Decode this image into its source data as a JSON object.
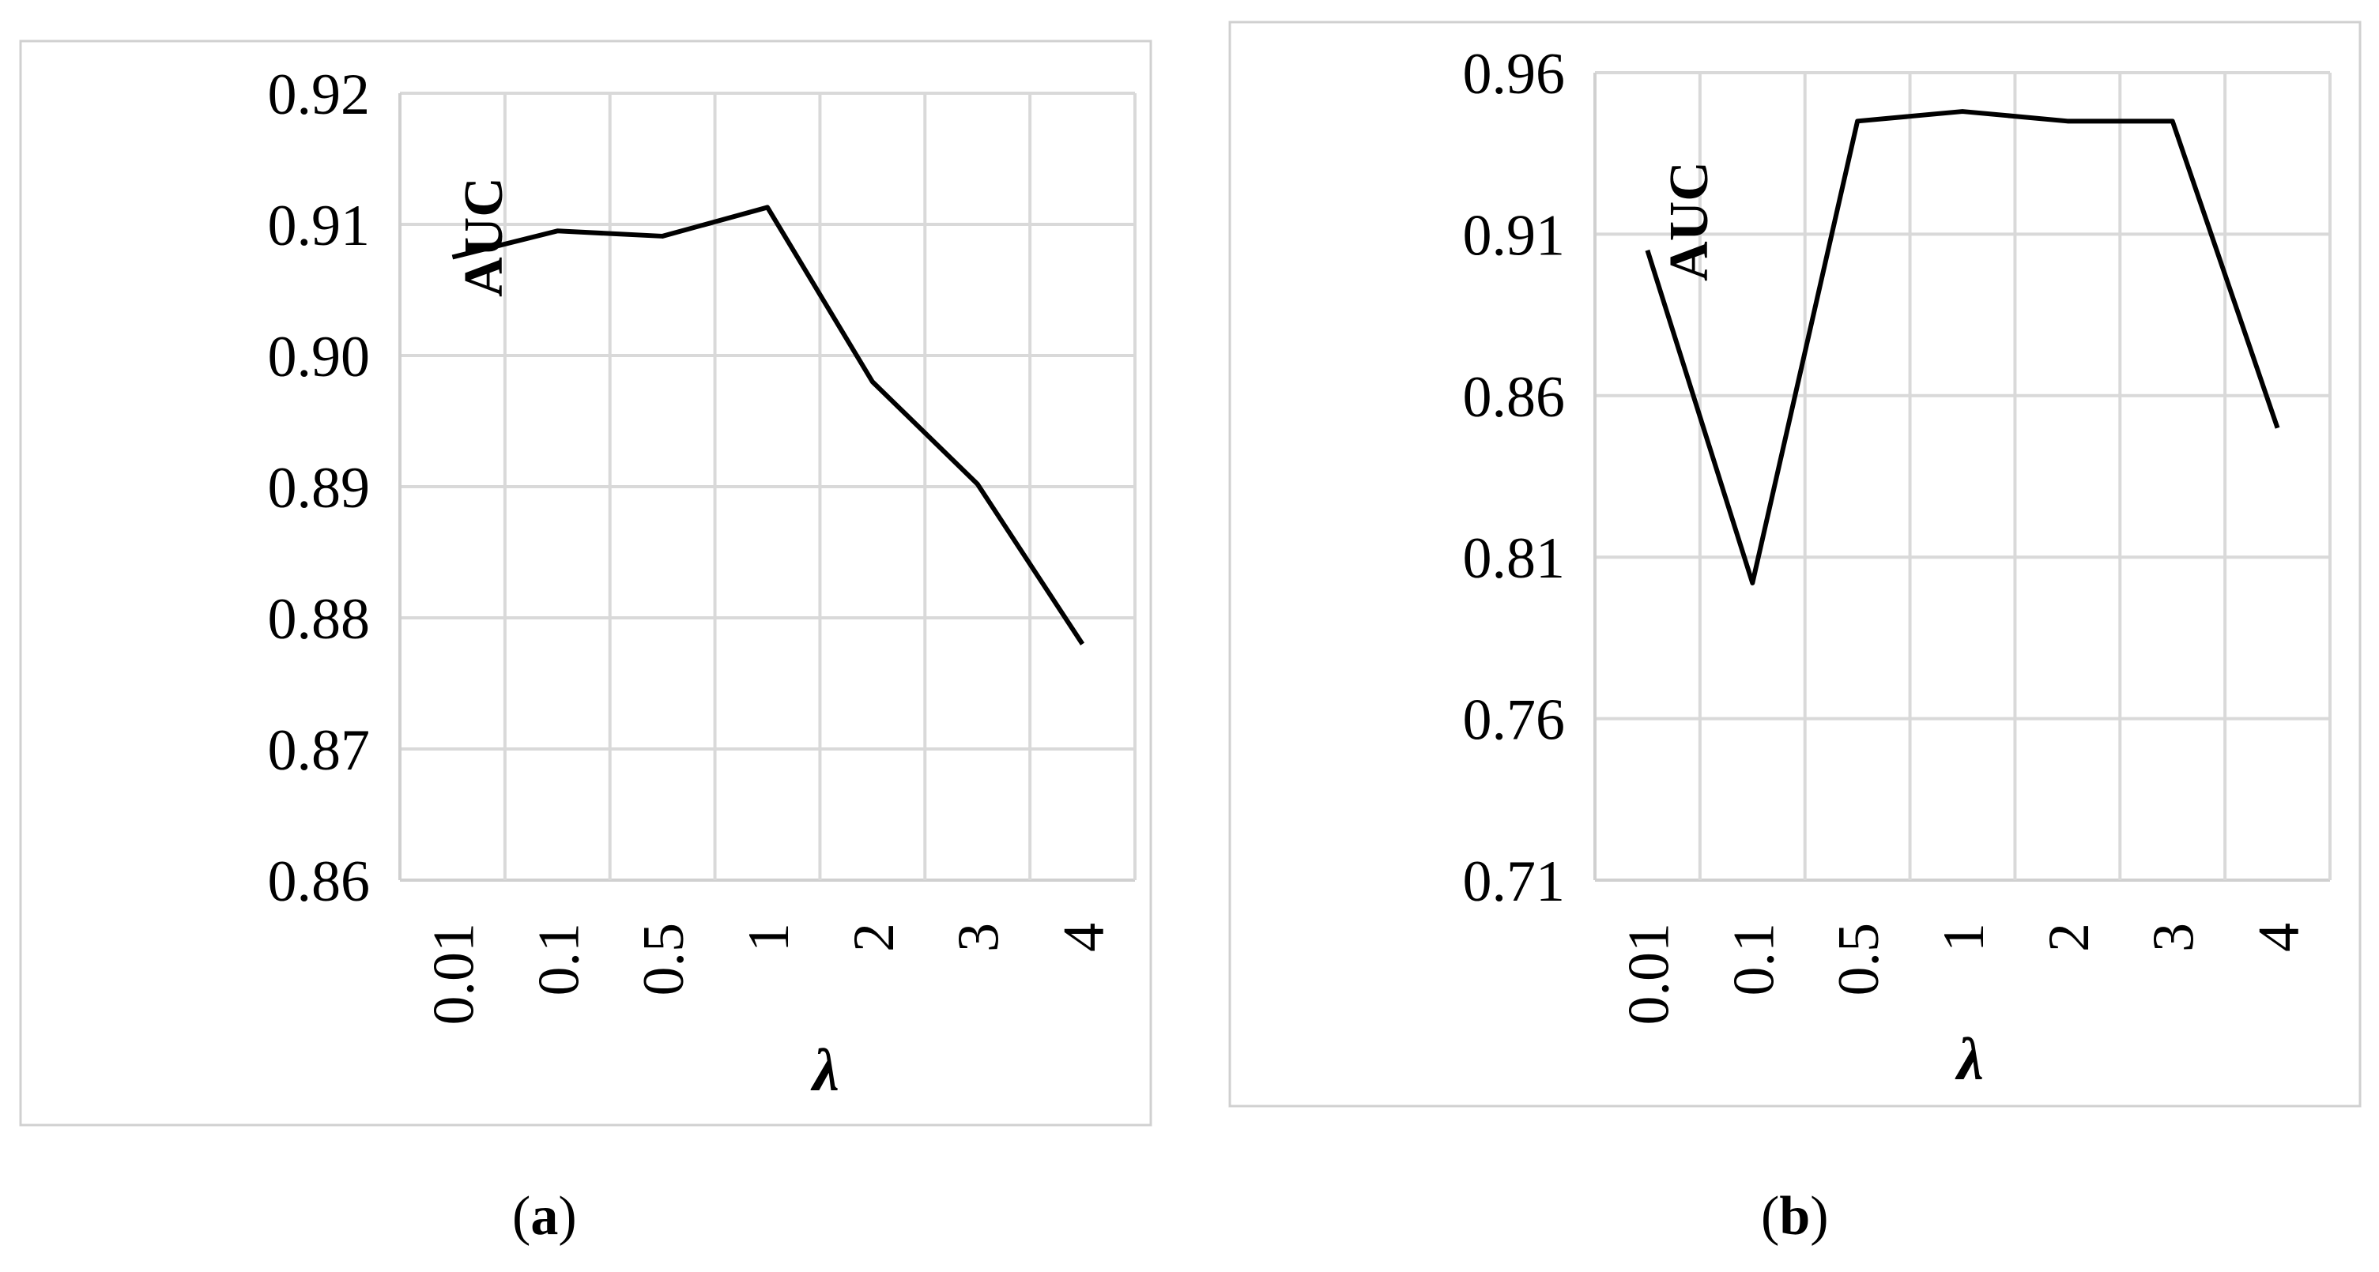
{
  "chart_data": [
    {
      "type": "line",
      "caption": "a",
      "xlabel": "λ",
      "ylabel": "AUC",
      "categories": [
        "0.01",
        "0.1",
        "0.5",
        "1",
        "2",
        "3",
        "4"
      ],
      "ylim": [
        0.86,
        0.92
      ],
      "yticks": [
        "0.86",
        "0.87",
        "0.88",
        "0.89",
        "0.90",
        "0.91",
        "0.92"
      ],
      "grid": true,
      "series": [
        {
          "values": [
            0.9075,
            0.9095,
            0.9091,
            0.9113,
            0.898,
            0.8902,
            0.878
          ]
        }
      ]
    },
    {
      "type": "line",
      "caption": "b",
      "xlabel": "λ",
      "ylabel": "AUC",
      "categories": [
        "0.01",
        "0.1",
        "0.5",
        "1",
        "2",
        "3",
        "4"
      ],
      "ylim": [
        0.71,
        0.96
      ],
      "yticks": [
        "0.71",
        "0.76",
        "0.81",
        "0.86",
        "0.91",
        "0.96"
      ],
      "grid": true,
      "series": [
        {
          "values": [
            0.905,
            0.802,
            0.945,
            0.948,
            0.945,
            0.945,
            0.85
          ]
        }
      ]
    }
  ]
}
